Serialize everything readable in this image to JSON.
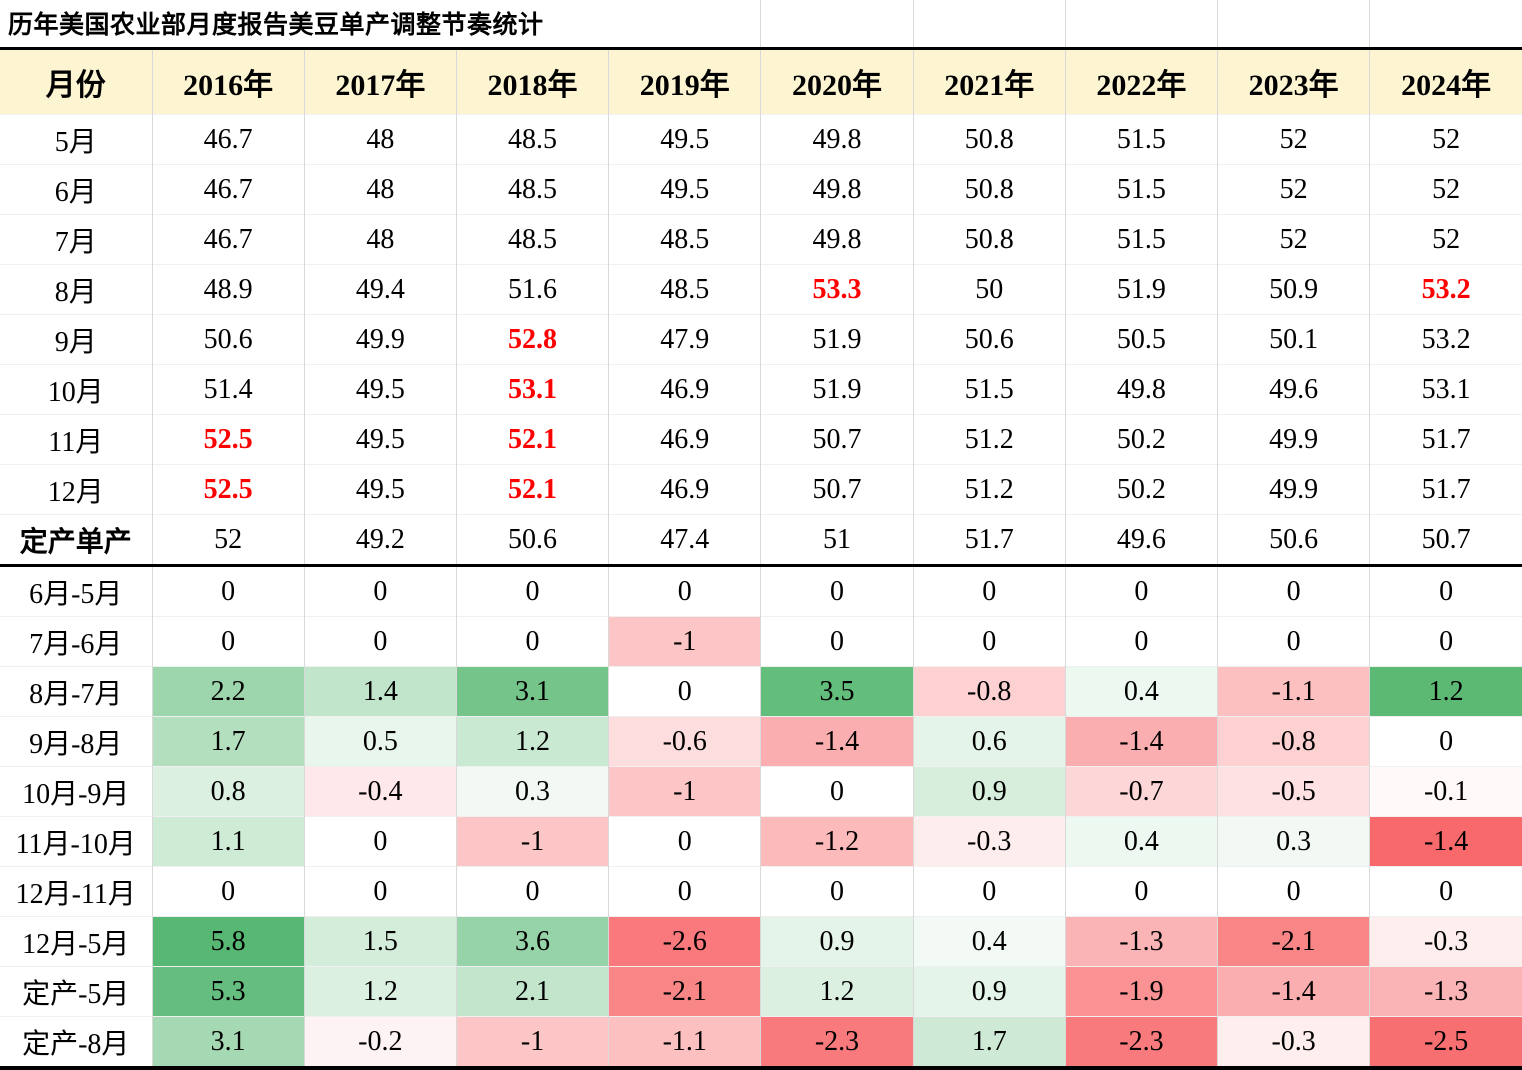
{
  "title": "历年美国农业部月度报告美豆单产调整节奏统计",
  "colors": {
    "header_bg": "#FDF5D2",
    "red_text": "#FF0000",
    "grid_line": "#D9D9D9",
    "section_line": "#000000",
    "scale_positive_max": "#63BE7B",
    "scale_negative_max": "#F8696B"
  },
  "chart_data": {
    "type": "table",
    "title": "历年美国农业部月度报告美豆单产调整节奏统计",
    "columns": [
      "月份",
      "2016年",
      "2017年",
      "2018年",
      "2019年",
      "2020年",
      "2021年",
      "2022年",
      "2023年",
      "2024年"
    ],
    "yield_rows": [
      {
        "label": "5月",
        "values": [
          "46.7",
          "48",
          "48.5",
          "49.5",
          "49.8",
          "50.8",
          "51.5",
          "52",
          "52"
        ],
        "red": []
      },
      {
        "label": "6月",
        "values": [
          "46.7",
          "48",
          "48.5",
          "49.5",
          "49.8",
          "50.8",
          "51.5",
          "52",
          "52"
        ],
        "red": []
      },
      {
        "label": "7月",
        "values": [
          "46.7",
          "48",
          "48.5",
          "48.5",
          "49.8",
          "50.8",
          "51.5",
          "52",
          "52"
        ],
        "red": []
      },
      {
        "label": "8月",
        "values": [
          "48.9",
          "49.4",
          "51.6",
          "48.5",
          "53.3",
          "50",
          "51.9",
          "50.9",
          "53.2"
        ],
        "red": [
          4,
          8
        ]
      },
      {
        "label": "9月",
        "values": [
          "50.6",
          "49.9",
          "52.8",
          "47.9",
          "51.9",
          "50.6",
          "50.5",
          "50.1",
          "53.2"
        ],
        "red": [
          2
        ]
      },
      {
        "label": "10月",
        "values": [
          "51.4",
          "49.5",
          "53.1",
          "46.9",
          "51.9",
          "51.5",
          "49.8",
          "49.6",
          "53.1"
        ],
        "red": [
          2
        ]
      },
      {
        "label": "11月",
        "values": [
          "52.5",
          "49.5",
          "52.1",
          "46.9",
          "50.7",
          "51.2",
          "50.2",
          "49.9",
          "51.7"
        ],
        "red": [
          0,
          2
        ]
      },
      {
        "label": "12月",
        "values": [
          "52.5",
          "49.5",
          "52.1",
          "46.9",
          "50.7",
          "51.2",
          "50.2",
          "49.9",
          "51.7"
        ],
        "red": [
          0,
          2
        ]
      },
      {
        "label": "定产单产",
        "values": [
          "52",
          "49.2",
          "50.6",
          "47.4",
          "51",
          "51.7",
          "49.6",
          "50.6",
          "50.7"
        ],
        "red": [],
        "bold": true
      }
    ],
    "diff_rows": [
      {
        "label": "6月-5月",
        "values": [
          "0",
          "0",
          "0",
          "0",
          "0",
          "0",
          "0",
          "0",
          "0"
        ],
        "bg": [
          "",
          "",
          "",
          "",
          "",
          "",
          "",
          "",
          ""
        ]
      },
      {
        "label": "7月-6月",
        "values": [
          "0",
          "0",
          "0",
          "-1",
          "0",
          "0",
          "0",
          "0",
          "0"
        ],
        "bg": [
          "",
          "",
          "",
          "#FCC5C6",
          "",
          "",
          "",
          "",
          ""
        ]
      },
      {
        "label": "8月-7月",
        "values": [
          "2.2",
          "1.4",
          "3.1",
          "0",
          "3.5",
          "-0.8",
          "0.4",
          "-1.1",
          "1.2"
        ],
        "bg": [
          "#9DD6AC",
          "#C1E5CA",
          "#75C58A",
          "",
          "#63BE7B",
          "#FDD1D1",
          "#EDF8F0",
          "#FCC0C1",
          "#5CB974"
        ]
      },
      {
        "label": "9月-8月",
        "values": [
          "1.7",
          "0.5",
          "1.2",
          "-0.6",
          "-1.4",
          "0.6",
          "-1.4",
          "-0.8",
          "0"
        ],
        "bg": [
          "#B3DFBF",
          "#E9F6EC",
          "#C9E9D2",
          "#FDDDDD",
          "#FBAEAF",
          "#E4F4E8",
          "#FBAEAF",
          "#FDD1D1",
          ""
        ]
      },
      {
        "label": "10月-9月",
        "values": [
          "0.8",
          "-0.4",
          "0.3",
          "-1",
          "0",
          "0.9",
          "-0.7",
          "-0.5",
          "-0.1"
        ],
        "bg": [
          "#DBF0E1",
          "#FEE8E9",
          "#F2F9F4",
          "#FCC5C6",
          "",
          "#D7EEDD",
          "#FDD7D7",
          "#FEE2E3",
          "#FFF9F9"
        ]
      },
      {
        "label": "11月-10月",
        "values": [
          "1.1",
          "0",
          "-1",
          "0",
          "-1.2",
          "-0.3",
          "0.4",
          "0.3",
          "-1.4"
        ],
        "bg": [
          "#CEEBD6",
          "",
          "#FCC5C6",
          "",
          "#FCBABB",
          "#FEEDED",
          "#EDF8F0",
          "#F2F9F4",
          "#F8696B"
        ]
      },
      {
        "label": "12月-11月",
        "values": [
          "0",
          "0",
          "0",
          "0",
          "0",
          "0",
          "0",
          "0",
          "0"
        ],
        "bg": [
          "",
          "",
          "",
          "",
          "",
          "",
          "",
          "",
          ""
        ]
      },
      {
        "label": "12月-5月",
        "values": [
          "5.8",
          "1.5",
          "3.6",
          "-2.6",
          "0.9",
          "0.4",
          "-1.3",
          "-2.1",
          "-0.3"
        ],
        "bg": [
          "#57B873",
          "#D4EDDB",
          "#97D3A8",
          "#F9797C",
          "#E5F4E9",
          "#F3FAF5",
          "#FBB4B5",
          "#F98687",
          "#FEEEEE"
        ]
      },
      {
        "label": "定产-5月",
        "values": [
          "5.3",
          "1.2",
          "2.1",
          "-2.1",
          "1.2",
          "0.9",
          "-1.9",
          "-1.4",
          "-1.3"
        ],
        "bg": [
          "#65BE7F",
          "#DCF0E2",
          "#C2E5CC",
          "#F98687",
          "#DCF0E2",
          "#E5F4E9",
          "#FA9193",
          "#FBAEAF",
          "#FBB4B5"
        ]
      },
      {
        "label": "定产-8月",
        "values": [
          "3.1",
          "-0.2",
          "-1",
          "-1.1",
          "-2.3",
          "1.7",
          "-2.3",
          "-0.3",
          "-2.5"
        ],
        "bg": [
          "#A5D9B4",
          "#FEF3F4",
          "#FCC5C6",
          "#FCC0C0",
          "#F97A7C",
          "#CEEAD6",
          "#F97A7C",
          "#FEEEEE",
          "#F86F71"
        ]
      }
    ]
  }
}
